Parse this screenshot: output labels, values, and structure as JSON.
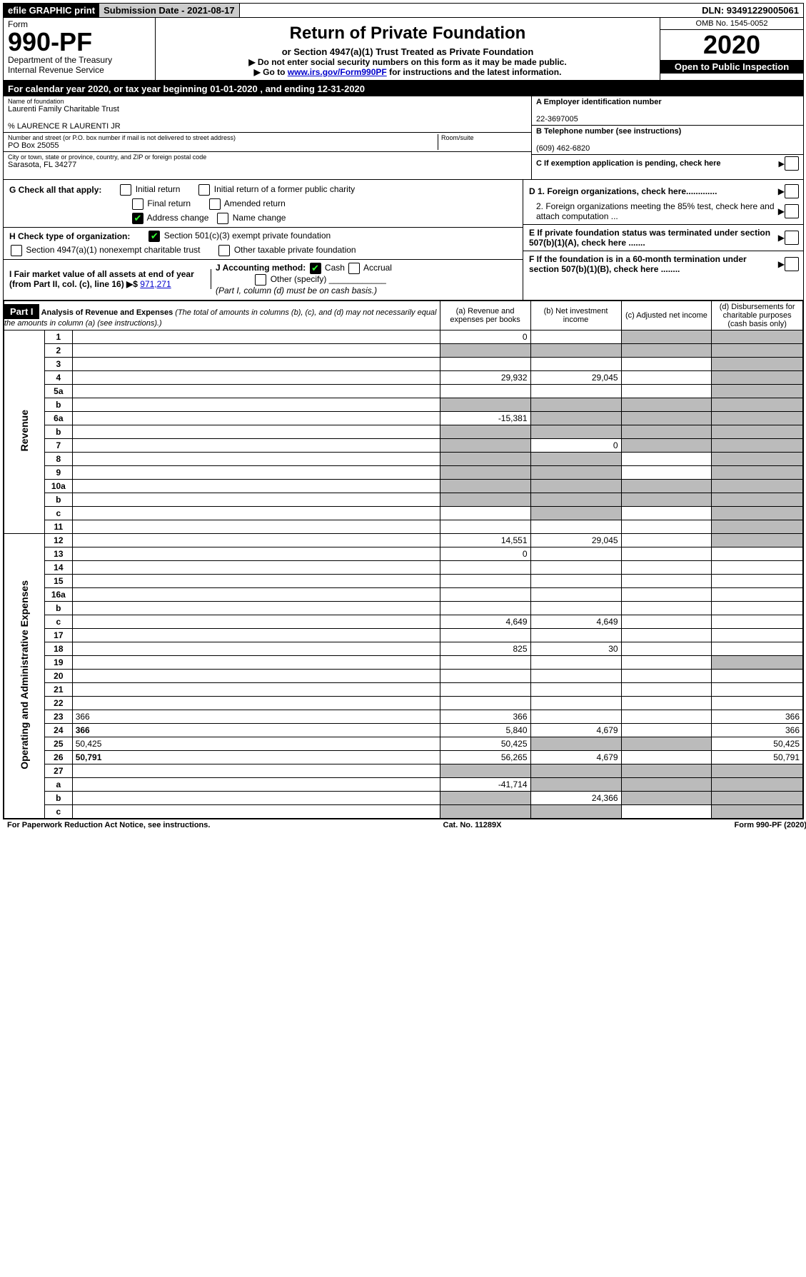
{
  "topbar": {
    "efile": "efile GRAPHIC print",
    "subdate_lbl": "Submission Date - ",
    "subdate": "2021-08-17",
    "dln_lbl": "DLN: ",
    "dln": "93491229005061"
  },
  "header": {
    "form_lbl": "Form",
    "form_no": "990-PF",
    "dept1": "Department of the Treasury",
    "dept2": "Internal Revenue Service",
    "title": "Return of Private Foundation",
    "subtitle": "or Section 4947(a)(1) Trust Treated as Private Foundation",
    "note1": "▶ Do not enter social security numbers on this form as it may be made public.",
    "note2a": "▶ Go to ",
    "note2link": "www.irs.gov/Form990PF",
    "note2b": " for instructions and the latest information.",
    "omb": "OMB No. 1545-0052",
    "year": "2020",
    "inspect": "Open to Public Inspection"
  },
  "cal": {
    "pre": "For calendar year 2020, or tax year beginning ",
    "begin": "01-01-2020",
    "mid": " , and ending ",
    "end": "12-31-2020"
  },
  "entity": {
    "name_lbl": "Name of foundation",
    "name": "Laurenti Family Charitable Trust",
    "care": "% LAURENCE R LAURENTI JR",
    "addr_lbl": "Number and street (or P.O. box number if mail is not delivered to street address)",
    "addr": "PO Box 25055",
    "room_lbl": "Room/suite",
    "city_lbl": "City or town, state or province, country, and ZIP or foreign postal code",
    "city": "Sarasota, FL  34277",
    "a_lbl": "A Employer identification number",
    "a_val": "22-3697005",
    "b_lbl": "B Telephone number (see instructions)",
    "b_val": "(609) 462-6820",
    "c_lbl": "C If exemption application is pending, check here"
  },
  "g": {
    "lbl": "G Check all that apply:",
    "o1": "Initial return",
    "o2": "Initial return of a former public charity",
    "o3": "Final return",
    "o4": "Amended return",
    "o5": "Address change",
    "o6": "Name change"
  },
  "h": {
    "lbl": "H Check type of organization:",
    "o1": "Section 501(c)(3) exempt private foundation",
    "o2": "Section 4947(a)(1) nonexempt charitable trust",
    "o3": "Other taxable private foundation"
  },
  "i": {
    "lbl": "I Fair market value of all assets at end of year (from Part II, col. (c), line 16) ▶$",
    "val": "971,271"
  },
  "j": {
    "lbl": "J Accounting method:",
    "cash": "Cash",
    "accrual": "Accrual",
    "other": "Other (specify)",
    "note": "(Part I, column (d) must be on cash basis.)"
  },
  "d": {
    "d1": "D 1. Foreign organizations, check here.............",
    "d2": "2. Foreign organizations meeting the 85% test, check here and attach computation ...",
    "e": "E  If private foundation status was terminated under section 507(b)(1)(A), check here .......",
    "f": "F  If the foundation is in a 60-month termination under section 507(b)(1)(B), check here ........"
  },
  "part1": {
    "badge": "Part I",
    "title": "Analysis of Revenue and Expenses",
    "title_note": " (The total of amounts in columns (b), (c), and (d) may not necessarily equal the amounts in column (a) (see instructions).)",
    "cols": {
      "a": "(a) Revenue and expenses per books",
      "b": "(b) Net investment income",
      "c": "(c) Adjusted net income",
      "d": "(d) Disbursements for charitable purposes (cash basis only)"
    }
  },
  "sides": {
    "rev": "Revenue",
    "exp": "Operating and Administrative Expenses"
  },
  "lines": [
    {
      "n": "1",
      "d": "",
      "a": "0",
      "b": "",
      "c": "",
      "shade": [
        "c",
        "d"
      ]
    },
    {
      "n": "2",
      "d": "",
      "a": "",
      "b": "",
      "c": "",
      "shade": [
        "a",
        "b",
        "c",
        "d"
      ],
      "bold_not": true
    },
    {
      "n": "3",
      "d": "",
      "a": "",
      "b": "",
      "c": "",
      "shade": [
        "d"
      ]
    },
    {
      "n": "4",
      "d": "",
      "a": "29,932",
      "b": "29,045",
      "c": "",
      "shade": [
        "d"
      ]
    },
    {
      "n": "5a",
      "d": "",
      "a": "",
      "b": "",
      "c": "",
      "shade": [
        "d"
      ]
    },
    {
      "n": "b",
      "d": "",
      "a": "",
      "b": "",
      "c": "",
      "shade": [
        "a",
        "b",
        "c",
        "d"
      ]
    },
    {
      "n": "6a",
      "d": "",
      "a": "-15,381",
      "b": "",
      "c": "",
      "shade": [
        "b",
        "c",
        "d"
      ]
    },
    {
      "n": "b",
      "d": "",
      "a": "",
      "b": "",
      "c": "",
      "shade": [
        "a",
        "b",
        "c",
        "d"
      ]
    },
    {
      "n": "7",
      "d": "",
      "a": "",
      "b": "0",
      "c": "",
      "shade": [
        "a",
        "c",
        "d"
      ]
    },
    {
      "n": "8",
      "d": "",
      "a": "",
      "b": "",
      "c": "",
      "shade": [
        "a",
        "b",
        "d"
      ]
    },
    {
      "n": "9",
      "d": "",
      "a": "",
      "b": "",
      "c": "",
      "shade": [
        "a",
        "b",
        "d"
      ]
    },
    {
      "n": "10a",
      "d": "",
      "a": "",
      "b": "",
      "c": "",
      "shade": [
        "a",
        "b",
        "c",
        "d"
      ]
    },
    {
      "n": "b",
      "d": "",
      "a": "",
      "b": "",
      "c": "",
      "shade": [
        "a",
        "b",
        "c",
        "d"
      ]
    },
    {
      "n": "c",
      "d": "",
      "a": "",
      "b": "",
      "c": "",
      "shade": [
        "b",
        "d"
      ]
    },
    {
      "n": "11",
      "d": "",
      "a": "",
      "b": "",
      "c": "",
      "shade": [
        "d"
      ]
    },
    {
      "n": "12",
      "d": "",
      "a": "14,551",
      "b": "29,045",
      "c": "",
      "shade": [
        "d"
      ],
      "bold": true
    },
    {
      "n": "13",
      "d": "",
      "a": "0",
      "b": "",
      "c": ""
    },
    {
      "n": "14",
      "d": "",
      "a": "",
      "b": "",
      "c": ""
    },
    {
      "n": "15",
      "d": "",
      "a": "",
      "b": "",
      "c": ""
    },
    {
      "n": "16a",
      "d": "",
      "a": "",
      "b": "",
      "c": ""
    },
    {
      "n": "b",
      "d": "",
      "a": "",
      "b": "",
      "c": ""
    },
    {
      "n": "c",
      "d": "",
      "a": "4,649",
      "b": "4,649",
      "c": ""
    },
    {
      "n": "17",
      "d": "",
      "a": "",
      "b": "",
      "c": ""
    },
    {
      "n": "18",
      "d": "",
      "a": "825",
      "b": "30",
      "c": ""
    },
    {
      "n": "19",
      "d": "",
      "a": "",
      "b": "",
      "c": "",
      "shade": [
        "d"
      ]
    },
    {
      "n": "20",
      "d": "",
      "a": "",
      "b": "",
      "c": ""
    },
    {
      "n": "21",
      "d": "",
      "a": "",
      "b": "",
      "c": ""
    },
    {
      "n": "22",
      "d": "",
      "a": "",
      "b": "",
      "c": ""
    },
    {
      "n": "23",
      "d": "366",
      "a": "366",
      "b": "",
      "c": ""
    },
    {
      "n": "24",
      "d": "366",
      "a": "5,840",
      "b": "4,679",
      "c": "",
      "bold": true
    },
    {
      "n": "25",
      "d": "50,425",
      "a": "50,425",
      "b": "",
      "c": "",
      "shade": [
        "b",
        "c"
      ]
    },
    {
      "n": "26",
      "d": "50,791",
      "a": "56,265",
      "b": "4,679",
      "c": "",
      "bold": true
    },
    {
      "n": "27",
      "d": "",
      "a": "",
      "b": "",
      "c": "",
      "shade": [
        "a",
        "b",
        "c",
        "d"
      ]
    },
    {
      "n": "a",
      "d": "",
      "a": "-41,714",
      "b": "",
      "c": "",
      "shade": [
        "b",
        "c",
        "d"
      ],
      "bold": true
    },
    {
      "n": "b",
      "d": "",
      "a": "",
      "b": "24,366",
      "c": "",
      "shade": [
        "a",
        "c",
        "d"
      ],
      "bold": true
    },
    {
      "n": "c",
      "d": "",
      "a": "",
      "b": "",
      "c": "",
      "shade": [
        "a",
        "b",
        "d"
      ],
      "bold": true
    }
  ],
  "footer": {
    "l": "For Paperwork Reduction Act Notice, see instructions.",
    "c": "Cat. No. 11289X",
    "r": "Form 990-PF (2020)"
  }
}
